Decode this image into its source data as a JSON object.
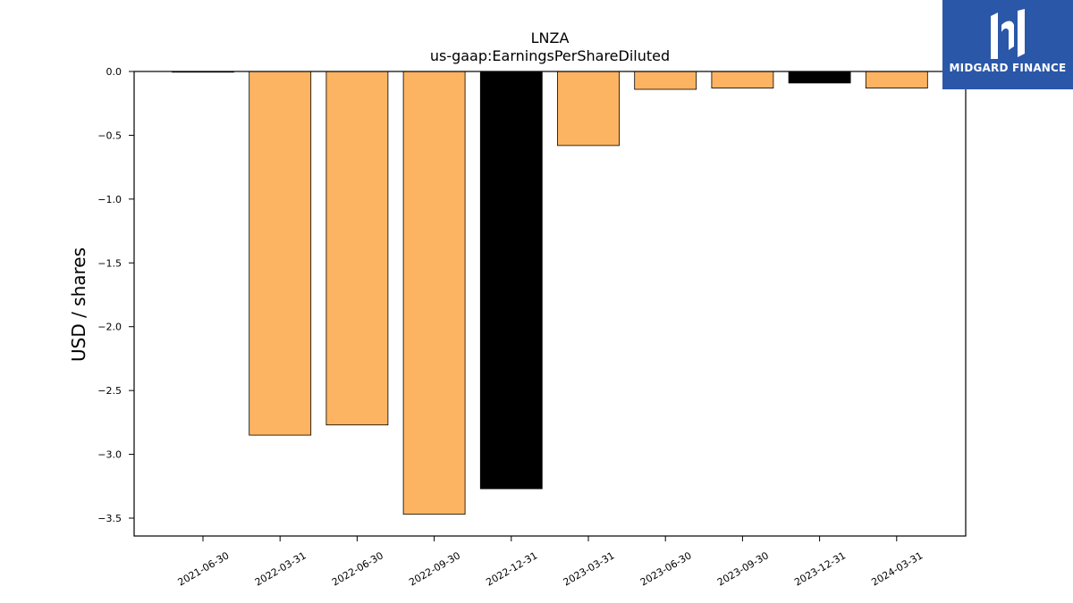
{
  "chart_data": {
    "type": "bar",
    "title": "LNZA",
    "subtitle": "us-gaap:EarningsPerShareDiluted",
    "xlabel": "",
    "ylabel": "USD / shares",
    "categories": [
      "2021-06-30",
      "2022-03-31",
      "2022-06-30",
      "2022-09-30",
      "2022-12-31",
      "2023-03-31",
      "2023-06-30",
      "2023-09-30",
      "2023-12-31",
      "2024-03-31"
    ],
    "values": [
      0.0,
      -2.85,
      -2.77,
      -3.47,
      -3.27,
      -0.58,
      -0.14,
      -0.13,
      -0.09,
      -0.13
    ],
    "bar_colors": [
      "#fdb462",
      "#fdb462",
      "#fdb462",
      "#fdb462",
      "#000000",
      "#fdb462",
      "#fdb462",
      "#fdb462",
      "#000000",
      "#fdb462"
    ],
    "ylim": [
      -3.64,
      0.0
    ],
    "yticks": [
      0.0,
      -0.5,
      -1.0,
      -1.5,
      -2.0,
      -2.5,
      -3.0,
      -3.5
    ],
    "ytick_labels": [
      "0.0",
      "−0.5",
      "−1.0",
      "−1.5",
      "−2.0",
      "−2.5",
      "−3.0",
      "−3.5"
    ],
    "grid": false,
    "legend": "none"
  },
  "logo": {
    "text": "MIDGARD FINANCE",
    "color": "#2b57a8",
    "icon": "midgard-logo-icon"
  }
}
